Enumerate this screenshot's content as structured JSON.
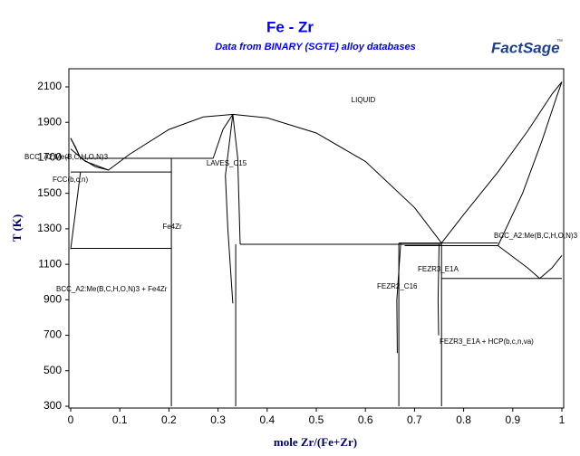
{
  "chart_data": {
    "type": "phase-diagram",
    "title": "Fe - Zr",
    "subtitle": "Data from BINARY (SGTE) alloy databases",
    "logo": "FactSage",
    "logo_mark": "™",
    "xlabel": "mole Zr/(Fe+Zr)",
    "ylabel": "T (K)",
    "xlim": [
      0,
      1
    ],
    "ylim": [
      300,
      2200
    ],
    "xticks": [
      0,
      0.1,
      0.2,
      0.3,
      0.4,
      0.5,
      0.6,
      0.7,
      0.8,
      0.9,
      1
    ],
    "yticks": [
      300,
      500,
      700,
      900,
      1100,
      1300,
      1500,
      1700,
      1900,
      2100
    ],
    "color": "#000000",
    "labels": [
      "LIQUID",
      "BCC_A2:Me(B,C,H,O,N)3",
      "FCC(b,c,n)",
      "LAVES_C15",
      "Fe4Zr",
      "BCC_A2:Me(B,C,H,O,N)3 + Fe4Zr",
      "FEZR2_C16",
      "FEZR3_E1A",
      "FEZR3_E1A + HCP(b,c,n,va)",
      "BCC_A2:Me(B,C,H,O,N)3"
    ],
    "curves": [
      {
        "x": [
          0,
          0.02,
          0.05,
          0.077,
          0.12,
          0.2,
          0.27,
          0.33
        ],
        "y": [
          1811,
          1700,
          1650,
          1631,
          1720,
          1860,
          1930,
          1945
        ]
      },
      {
        "x": [
          0.33,
          0.4,
          0.5,
          0.6,
          0.7,
          0.755
        ],
        "y": [
          1945,
          1925,
          1840,
          1680,
          1420,
          1220
        ]
      },
      {
        "x": [
          0.755,
          0.8,
          0.87,
          0.93,
          0.98,
          1
        ],
        "y": [
          1220,
          1380,
          1620,
          1850,
          2060,
          2128
        ]
      },
      {
        "x": [
          0.87,
          0.92,
          0.96,
          0.99,
          1
        ],
        "y": [
          1205,
          1500,
          1800,
          2050,
          2128
        ]
      },
      {
        "x": [
          0,
          0.01,
          0.02
        ],
        "y": [
          1811,
          1760,
          1697
        ]
      },
      {
        "x": [
          0,
          0.03,
          0.077
        ],
        "y": [
          1750,
          1680,
          1631
        ]
      },
      {
        "x": [
          0,
          0.01,
          0.02
        ],
        "y": [
          1185,
          1400,
          1620
        ]
      },
      {
        "x": [
          0.02,
          0.29
        ],
        "y": [
          1697,
          1697
        ]
      },
      {
        "x": [
          0,
          0.205
        ],
        "y": [
          1620,
          1620
        ]
      },
      {
        "x": [
          0,
          0.205
        ],
        "y": [
          1190,
          1190
        ]
      },
      {
        "x": [
          0.205,
          0.205
        ],
        "y": [
          300,
          1697
        ]
      },
      {
        "x": [
          0.29,
          0.31,
          0.33
        ],
        "y": [
          1697,
          1860,
          1945
        ]
      },
      {
        "x": [
          0.33,
          0.315,
          0.32,
          0.33
        ],
        "y": [
          1945,
          1600,
          1300,
          880
        ]
      },
      {
        "x": [
          0.33,
          0.34,
          0.345
        ],
        "y": [
          1945,
          1700,
          1213
        ]
      },
      {
        "x": [
          0.336,
          0.336
        ],
        "y": [
          300,
          1213
        ]
      },
      {
        "x": [
          0.345,
          0.755
        ],
        "y": [
          1213,
          1213
        ]
      },
      {
        "x": [
          0.668,
          0.87
        ],
        "y": [
          1220,
          1220
        ]
      },
      {
        "x": [
          0.68,
          0.87
        ],
        "y": [
          1205,
          1205
        ]
      },
      {
        "x": [
          0.668,
          0.668
        ],
        "y": [
          300,
          1220
        ]
      },
      {
        "x": [
          0.672,
          0.664,
          0.665
        ],
        "y": [
          1220,
          900,
          600
        ]
      },
      {
        "x": [
          0.755,
          0.755
        ],
        "y": [
          300,
          1220
        ]
      },
      {
        "x": [
          0.75,
          0.748,
          0.749
        ],
        "y": [
          1213,
          900,
          700
        ]
      },
      {
        "x": [
          0.755,
          1
        ],
        "y": [
          1020,
          1020
        ]
      },
      {
        "x": [
          0.87,
          0.93,
          0.955
        ],
        "y": [
          1205,
          1080,
          1020
        ]
      },
      {
        "x": [
          1,
          0.98,
          0.955
        ],
        "y": [
          1150,
          1080,
          1020
        ]
      }
    ]
  }
}
